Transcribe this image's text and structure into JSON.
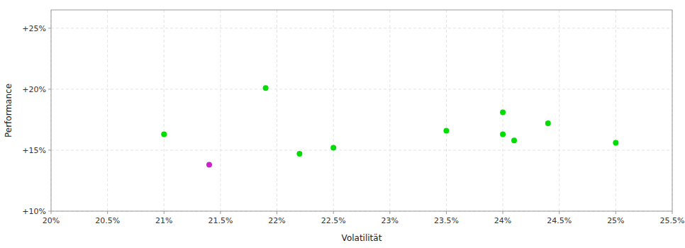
{
  "chart_data": {
    "type": "scatter",
    "xlabel": "Volatilität",
    "ylabel": "Performance",
    "xlim": [
      0.2,
      0.255
    ],
    "ylim": [
      0.1,
      0.265
    ],
    "xticks": [
      {
        "value": 0.2,
        "label": "20%"
      },
      {
        "value": 0.205,
        "label": "20.5%"
      },
      {
        "value": 0.21,
        "label": "21%"
      },
      {
        "value": 0.215,
        "label": "21.5%"
      },
      {
        "value": 0.22,
        "label": "22%"
      },
      {
        "value": 0.225,
        "label": "22.5%"
      },
      {
        "value": 0.23,
        "label": "23%"
      },
      {
        "value": 0.235,
        "label": "23.5%"
      },
      {
        "value": 0.24,
        "label": "24%"
      },
      {
        "value": 0.245,
        "label": "24.5%"
      },
      {
        "value": 0.25,
        "label": "25%"
      },
      {
        "value": 0.255,
        "label": "25.5%"
      }
    ],
    "yticks": [
      {
        "value": 0.1,
        "label": "+10%"
      },
      {
        "value": 0.15,
        "label": "+15%"
      },
      {
        "value": 0.2,
        "label": "+20%"
      },
      {
        "value": 0.25,
        "label": "+25%"
      }
    ],
    "grid": true,
    "series": [
      {
        "color": "#00dd00",
        "x": [
          0.21,
          0.219,
          0.222,
          0.225,
          0.235,
          0.24,
          0.24,
          0.241,
          0.244,
          0.25
        ],
        "values": [
          0.163,
          0.201,
          0.147,
          0.152,
          0.166,
          0.181,
          0.163,
          0.158,
          0.172,
          0.156
        ]
      },
      {
        "color": "#cc22cc",
        "x": [
          0.214
        ],
        "values": [
          0.138
        ]
      }
    ]
  }
}
